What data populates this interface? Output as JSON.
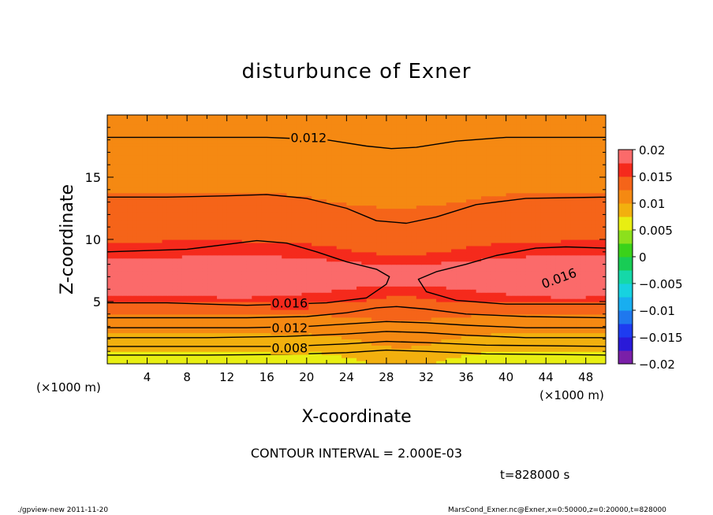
{
  "title": "disturbunce of Exner",
  "contour_interval_text": "CONTOUR INTERVAL = 2.000E-03",
  "time_text": "t=828000 s",
  "footer_left": "./gpview-new  2011-11-20",
  "footer_right": "MarsCond_Exner.nc@Exner,x=0:50000,z=0:20000,t=828000",
  "colors": {
    "levels": [
      {
        "lo": -0.02,
        "hi": -0.0175,
        "color": "#7a1fa8"
      },
      {
        "lo": -0.0175,
        "hi": -0.015,
        "color": "#2a1ad8"
      },
      {
        "lo": -0.015,
        "hi": -0.0125,
        "color": "#1e3cf0"
      },
      {
        "lo": -0.0125,
        "hi": -0.01,
        "color": "#1f78ee"
      },
      {
        "lo": -0.01,
        "hi": -0.0075,
        "color": "#18aef0"
      },
      {
        "lo": -0.0075,
        "hi": -0.005,
        "color": "#17d2e0"
      },
      {
        "lo": -0.005,
        "hi": -0.0025,
        "color": "#15d8a8"
      },
      {
        "lo": -0.0025,
        "hi": 0.0,
        "color": "#18cc55"
      },
      {
        "lo": 0.0,
        "hi": 0.0025,
        "color": "#3ad21a"
      },
      {
        "lo": 0.0025,
        "hi": 0.005,
        "color": "#8ce01c"
      },
      {
        "lo": 0.005,
        "hi": 0.0075,
        "color": "#e8ee12"
      },
      {
        "lo": 0.0075,
        "hi": 0.01,
        "color": "#f2b00e"
      },
      {
        "lo": 0.01,
        "hi": 0.0125,
        "color": "#f58912"
      },
      {
        "lo": 0.0125,
        "hi": 0.015,
        "color": "#f56419"
      },
      {
        "lo": 0.015,
        "hi": 0.0175,
        "color": "#f52a1c"
      },
      {
        "lo": 0.0175,
        "hi": 0.02,
        "color": "#fb6a6a"
      }
    ]
  },
  "chart_data": {
    "type": "contour",
    "title": "disturbunce of Exner",
    "xlabel": "X-coordinate",
    "ylabel": "Z-coordinate",
    "x_unit_label_left": "(×1000 m)",
    "x_unit_label_right": "(×1000 m)",
    "xlim": [
      0,
      50
    ],
    "ylim": [
      0,
      20
    ],
    "xticks": [
      4,
      8,
      12,
      16,
      20,
      24,
      28,
      32,
      36,
      40,
      44,
      48
    ],
    "yticks": [
      5,
      10,
      15
    ],
    "colorbar": {
      "range": [
        -0.02,
        0.02
      ],
      "tick_values": [
        0.02,
        0.015,
        0.01,
        0.005,
        0,
        -0.005,
        -0.01,
        -0.015,
        -0.02
      ],
      "tick_labels": [
        "0.02",
        "0.015",
        "0.01",
        "0.005",
        "0",
        "−0.005",
        "−0.01",
        "−0.015",
        "−0.02"
      ]
    },
    "contour_interval": 0.002,
    "contour_labels": [
      {
        "text": "0.012",
        "x": 20.2,
        "z": 18.2,
        "angle": 0
      },
      {
        "text": "0.016",
        "x": 45.3,
        "z": 6.9,
        "angle": -20
      },
      {
        "text": "0.016",
        "x": 18.3,
        "z": 4.9,
        "angle": 0
      },
      {
        "text": "0.012",
        "x": 18.3,
        "z": 2.9,
        "angle": 0
      },
      {
        "text": "0.008",
        "x": 18.3,
        "z": 1.3,
        "angle": 0
      }
    ],
    "contour_lines": [
      {
        "level": 0.012,
        "points": [
          [
            0,
            18.2
          ],
          [
            10,
            18.2
          ],
          [
            16,
            18.2
          ],
          [
            22,
            18.0
          ],
          [
            26,
            17.5
          ],
          [
            28.5,
            17.3
          ],
          [
            31,
            17.4
          ],
          [
            35,
            17.9
          ],
          [
            40,
            18.2
          ],
          [
            50,
            18.2
          ]
        ]
      },
      {
        "level": 0.014,
        "points": [
          [
            0,
            13.4
          ],
          [
            6,
            13.4
          ],
          [
            12,
            13.5
          ],
          [
            16,
            13.6
          ],
          [
            20,
            13.3
          ],
          [
            24,
            12.5
          ],
          [
            27,
            11.5
          ],
          [
            30,
            11.3
          ],
          [
            33,
            11.8
          ],
          [
            37,
            12.8
          ],
          [
            42,
            13.3
          ],
          [
            50,
            13.4
          ]
        ]
      },
      {
        "level": 0.016,
        "points": [
          [
            0,
            9.0
          ],
          [
            4,
            9.1
          ],
          [
            8,
            9.2
          ],
          [
            12,
            9.6
          ],
          [
            15,
            9.9
          ],
          [
            18,
            9.7
          ],
          [
            21,
            9.0
          ],
          [
            24,
            8.2
          ],
          [
            27,
            7.6
          ],
          [
            28.3,
            7.0
          ],
          [
            28.0,
            6.4
          ],
          [
            26,
            5.3
          ],
          [
            22,
            4.9
          ],
          [
            18,
            4.8
          ],
          [
            14,
            4.7
          ],
          [
            10,
            4.8
          ],
          [
            6,
            4.9
          ],
          [
            0,
            4.9
          ]
        ]
      },
      {
        "level": 0.016,
        "points": [
          [
            50,
            9.3
          ],
          [
            46,
            9.4
          ],
          [
            43,
            9.3
          ],
          [
            39,
            8.7
          ],
          [
            36,
            8.0
          ],
          [
            33,
            7.4
          ],
          [
            31.2,
            6.8
          ],
          [
            32,
            5.8
          ],
          [
            35,
            5.1
          ],
          [
            40,
            4.8
          ],
          [
            45,
            4.8
          ],
          [
            50,
            4.8
          ]
        ]
      },
      {
        "level": 0.014,
        "points": [
          [
            0,
            3.7
          ],
          [
            8,
            3.7
          ],
          [
            14,
            3.7
          ],
          [
            20,
            3.8
          ],
          [
            24,
            4.1
          ],
          [
            27,
            4.5
          ],
          [
            29,
            4.6
          ],
          [
            32,
            4.4
          ],
          [
            36,
            4.0
          ],
          [
            42,
            3.8
          ],
          [
            50,
            3.7
          ]
        ]
      },
      {
        "level": 0.012,
        "points": [
          [
            0,
            2.9
          ],
          [
            8,
            2.9
          ],
          [
            14,
            2.9
          ],
          [
            20,
            3.0
          ],
          [
            24,
            3.2
          ],
          [
            28,
            3.4
          ],
          [
            32,
            3.3
          ],
          [
            36,
            3.1
          ],
          [
            42,
            2.9
          ],
          [
            50,
            2.9
          ]
        ]
      },
      {
        "level": 0.01,
        "points": [
          [
            0,
            2.1
          ],
          [
            10,
            2.1
          ],
          [
            18,
            2.2
          ],
          [
            24,
            2.4
          ],
          [
            28,
            2.6
          ],
          [
            32,
            2.5
          ],
          [
            36,
            2.3
          ],
          [
            42,
            2.1
          ],
          [
            50,
            2.1
          ]
        ]
      },
      {
        "level": 0.008,
        "points": [
          [
            0,
            1.4
          ],
          [
            10,
            1.4
          ],
          [
            18,
            1.4
          ],
          [
            24,
            1.6
          ],
          [
            28,
            1.8
          ],
          [
            32,
            1.7
          ],
          [
            38,
            1.5
          ],
          [
            50,
            1.4
          ]
        ]
      },
      {
        "level": 0.006,
        "points": [
          [
            0,
            0.7
          ],
          [
            10,
            0.7
          ],
          [
            18,
            0.75
          ],
          [
            24,
            0.9
          ],
          [
            28,
            1.1
          ],
          [
            32,
            1.0
          ],
          [
            38,
            0.8
          ],
          [
            50,
            0.7
          ]
        ]
      }
    ]
  }
}
